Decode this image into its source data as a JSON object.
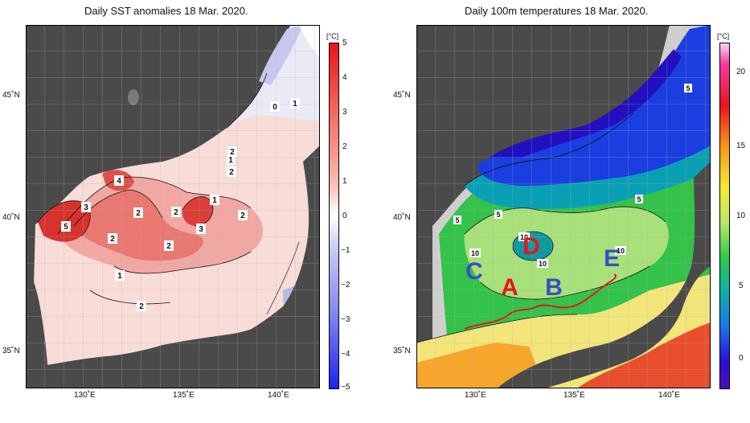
{
  "left_panel": {
    "title": "Daily SST anomalies 18 Mar. 2020.",
    "unit": "[°C]",
    "colorbar_ticks": [
      "5",
      "4",
      "3",
      "2",
      "1",
      "0",
      "−1",
      "−2",
      "−3",
      "−4",
      "−5"
    ],
    "lat_labels": [
      "45˚N",
      "40˚N",
      "35˚N"
    ],
    "lon_labels": [
      "130˚E",
      "135˚E",
      "140˚E"
    ],
    "contour_labels": [
      "5",
      "3",
      "4",
      "2",
      "2",
      "3",
      "2",
      "1",
      "2",
      "2",
      "2",
      "1",
      "2",
      "1",
      "0",
      "1",
      "2"
    ]
  },
  "right_panel": {
    "title": "Daily 100m temperatures 18 Mar. 2020.",
    "unit": "[°C]",
    "colorbar_ticks": [
      "20",
      "15",
      "10",
      "5",
      "0"
    ],
    "lat_labels": [
      "45˚N",
      "40˚N",
      "35˚N"
    ],
    "lon_labels": [
      "130˚E",
      "135˚E",
      "140˚E"
    ],
    "contour_labels": [
      "5",
      "5",
      "5",
      "10",
      "10",
      "10",
      "10",
      "5"
    ],
    "region_labels": {
      "A": "A",
      "B": "B",
      "C": "C",
      "D": "D",
      "E": "E"
    },
    "colors": {
      "A": "#e8141e",
      "D": "#e8141e",
      "B": "#3b4ec4",
      "C": "#3b4ec4",
      "E": "#3b4ec4",
      "front_line": "#e8141e"
    }
  }
}
